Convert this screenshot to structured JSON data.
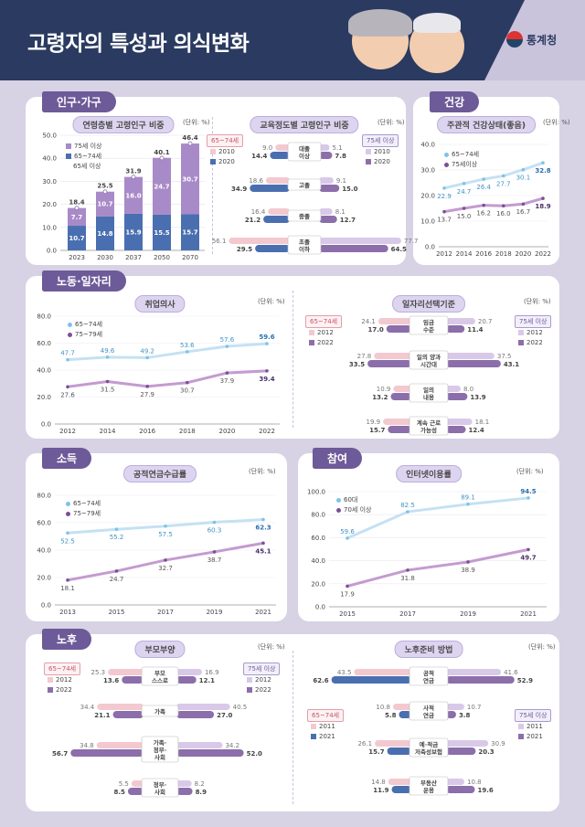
{
  "header": {
    "title": "고령자의 특성과 의식변화",
    "org": "통계청"
  },
  "sections": {
    "pop": "인구·가구",
    "health": "건강",
    "labor": "노동·일자리",
    "income": "소득",
    "part": "참여",
    "old": "노후"
  },
  "unit": "(단위: %)",
  "colors": {
    "light": "#7da7d4",
    "dark": "#4a6fb0",
    "top": "#a98ac8",
    "l1": "#c5e1f3",
    "l2": "#c49bd0",
    "mid": "#8b6eaa"
  },
  "chart_data": [
    {
      "id": "pop_bar",
      "type": "bar",
      "title": "연령층별 고령인구 비중",
      "categories": [
        "2023",
        "2030",
        "2037",
        "2050",
        "2070"
      ],
      "series": [
        {
          "name": "65~74세",
          "values": [
            10.7,
            14.8,
            15.9,
            15.5,
            15.7
          ]
        },
        {
          "name": "75세 이상",
          "values": [
            7.7,
            10.7,
            16.0,
            24.7,
            30.7
          ]
        }
      ],
      "totals": [
        18.4,
        25.5,
        31.9,
        40.1,
        46.4
      ],
      "total_name": "65세 이상",
      "ylim": [
        0,
        50
      ],
      "yticks": [
        "0.0",
        "10.0",
        "20.0",
        "30.0",
        "40.0",
        "50.0"
      ]
    },
    {
      "id": "edu",
      "type": "bar",
      "title": "교육정도별 고령인구 비중",
      "left_group": "65~74세",
      "right_group": "75세 이상",
      "years": [
        "2010",
        "2020"
      ],
      "categories": [
        "대졸\n이상",
        "고졸",
        "중졸",
        "초졸\n이하"
      ],
      "left": {
        "2010": [
          9.0,
          18.6,
          16.4,
          56.1
        ],
        "2020": [
          14.4,
          34.9,
          21.2,
          29.5
        ]
      },
      "right": {
        "2010": [
          5.1,
          9.1,
          8.1,
          77.7
        ],
        "2020": [
          7.8,
          15.0,
          12.7,
          64.5
        ]
      }
    },
    {
      "id": "health",
      "type": "line",
      "title": "주관적 건강상태(좋음)",
      "x": [
        "2012",
        "2014",
        "2016",
        "2018",
        "2020",
        "2022"
      ],
      "series": [
        {
          "name": "65~74세",
          "values": [
            22.9,
            24.7,
            26.4,
            27.7,
            30.1,
            32.8
          ]
        },
        {
          "name": "75세이상",
          "values": [
            13.7,
            15.0,
            16.2,
            16.0,
            16.7,
            18.9
          ]
        }
      ],
      "ylim": [
        0,
        40
      ],
      "yticks": [
        "0.0",
        "10.0",
        "20.0",
        "30.0",
        "40.0"
      ]
    },
    {
      "id": "work",
      "type": "line",
      "title": "취업의사",
      "x": [
        "2012",
        "2014",
        "2016",
        "2018",
        "2020",
        "2022"
      ],
      "series": [
        {
          "name": "65~74세",
          "values": [
            47.7,
            49.6,
            49.2,
            53.6,
            57.6,
            59.6
          ]
        },
        {
          "name": "75~79세",
          "values": [
            27.6,
            31.5,
            27.9,
            30.7,
            37.9,
            39.4
          ]
        }
      ],
      "ylim": [
        0,
        80
      ],
      "yticks": [
        "0.0",
        "20.0",
        "40.0",
        "60.0",
        "80.0"
      ]
    },
    {
      "id": "job",
      "type": "bar",
      "title": "일자리선택기준",
      "left_group": "65~74세",
      "right_group": "75세 이상",
      "years": [
        "2012",
        "2022"
      ],
      "categories": [
        "임금\n수준",
        "일의 양과\n시간대",
        "일의\n내용",
        "계속 근로\n가능성"
      ],
      "left": {
        "2012": [
          24.1,
          27.8,
          10.9,
          19.9
        ],
        "2022": [
          17.0,
          33.5,
          13.2,
          15.7
        ]
      },
      "right": {
        "2012": [
          20.7,
          37.5,
          8.0,
          18.1
        ],
        "2022": [
          11.4,
          43.1,
          13.9,
          12.4
        ]
      }
    },
    {
      "id": "pension",
      "type": "line",
      "title": "공적연금수급률",
      "x": [
        "2013",
        "2015",
        "2017",
        "2019",
        "2021"
      ],
      "series": [
        {
          "name": "65~74세",
          "values": [
            52.5,
            55.2,
            57.5,
            60.3,
            62.3
          ]
        },
        {
          "name": "75~79세",
          "values": [
            18.1,
            24.7,
            32.7,
            38.7,
            45.1
          ]
        }
      ],
      "ylim": [
        0,
        80
      ],
      "yticks": [
        "0.0",
        "20.0",
        "40.0",
        "60.0",
        "80.0"
      ]
    },
    {
      "id": "internet",
      "type": "line",
      "title": "인터넷이용률",
      "x": [
        "2015",
        "2017",
        "2019",
        "2021"
      ],
      "series": [
        {
          "name": "60대",
          "values": [
            59.6,
            82.5,
            89.1,
            94.5
          ]
        },
        {
          "name": "70세 이상",
          "values": [
            17.9,
            31.8,
            38.9,
            49.7
          ]
        }
      ],
      "ylim": [
        0,
        100
      ],
      "yticks": [
        "0.0",
        "20.0",
        "40.0",
        "60.0",
        "80.0",
        "100.0"
      ]
    },
    {
      "id": "parent",
      "type": "bar",
      "title": "부모부양",
      "left_group": "65~74세",
      "right_group": "75세 이상",
      "years": [
        "2012",
        "2022"
      ],
      "categories": [
        "부모\n스스로",
        "가족",
        "가족·\n정부·\n사회",
        "정부·\n사회"
      ],
      "left": {
        "2012": [
          25.3,
          34.4,
          34.8,
          5.5
        ],
        "2022": [
          13.6,
          21.1,
          56.7,
          8.5
        ]
      },
      "right": {
        "2012": [
          16.9,
          40.5,
          34.2,
          8.2
        ],
        "2022": [
          12.1,
          27.0,
          52.0,
          8.9
        ]
      }
    },
    {
      "id": "prep",
      "type": "bar",
      "title": "노후준비 방법",
      "left_group": "65~74세",
      "right_group": "75세 이상",
      "years": [
        "2011",
        "2021"
      ],
      "categories": [
        "공적\n연금",
        "사적\n연금",
        "예·적금\n저축성보험",
        "부동산\n운용"
      ],
      "left": {
        "2011": [
          43.5,
          10.8,
          26.1,
          14.8
        ],
        "2021": [
          62.6,
          5.8,
          15.7,
          11.9
        ]
      },
      "right": {
        "2011": [
          41.6,
          10.7,
          30.9,
          10.8
        ],
        "2021": [
          52.9,
          3.8,
          20.3,
          19.6
        ]
      }
    }
  ]
}
